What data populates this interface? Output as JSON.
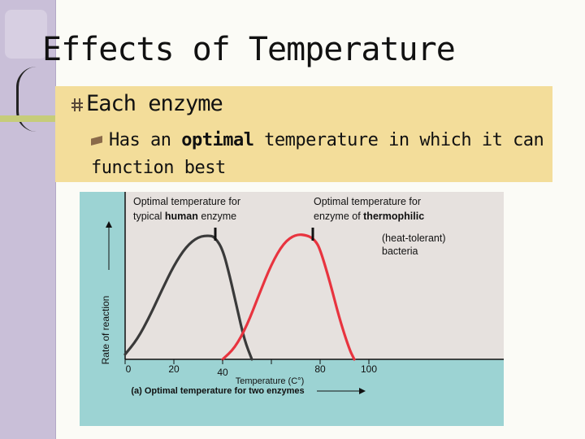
{
  "slide": {
    "title": "Effects of Temperature",
    "bullet1": "Each enzyme",
    "bullet2": {
      "before": "Has an ",
      "emph": "optimal",
      "after": " temperature in which it can function best"
    }
  },
  "colors": {
    "human": "#3a3a3a",
    "thermophilic": "#e8343f",
    "plot_bg": "#e6e1de",
    "frame_bg": "#9cd3d3"
  },
  "chart_data": {
    "type": "line",
    "title": "",
    "caption": "(a) Optimal temperature for two enzymes",
    "xlabel": "Temperature (C°)",
    "ylabel": "Rate of reaction",
    "xlim": [
      0,
      120
    ],
    "ylim": [
      0,
      1
    ],
    "x_ticks": [
      0,
      20,
      40,
      60,
      80,
      100
    ],
    "x_tick_labels": [
      "0",
      "20",
      "40",
      "",
      "80",
      "100"
    ],
    "grid": false,
    "series": [
      {
        "key": "human",
        "color": "#3a3a3a",
        "x": [
          0,
          5,
          10,
          15,
          20,
          25,
          30,
          35,
          37,
          40,
          43,
          46,
          49,
          52
        ],
        "y": [
          0.04,
          0.16,
          0.34,
          0.55,
          0.75,
          0.9,
          0.98,
          0.99,
          0.97,
          0.88,
          0.66,
          0.4,
          0.15,
          0.0
        ]
      },
      {
        "key": "thermophilic",
        "color": "#e8343f",
        "x": [
          40,
          45,
          50,
          55,
          60,
          65,
          70,
          75,
          78,
          80,
          84,
          88,
          92,
          94
        ],
        "y": [
          0.0,
          0.09,
          0.27,
          0.52,
          0.76,
          0.93,
          1.0,
          0.99,
          0.95,
          0.88,
          0.62,
          0.32,
          0.08,
          0.0
        ]
      }
    ],
    "annotations": [
      {
        "key": "human",
        "line1": "Optimal temperature for",
        "line2_before": "typical ",
        "line2_bold": "human",
        "line2_after": " enzyme",
        "x": 37
      },
      {
        "key": "thermo",
        "line1": "Optimal temperature for",
        "line2_before": "enzyme of ",
        "line2_bold": "thermophilic",
        "line2_after": "",
        "line3": "(heat-tolerant)",
        "line4": "bacteria",
        "x": 77
      }
    ]
  }
}
